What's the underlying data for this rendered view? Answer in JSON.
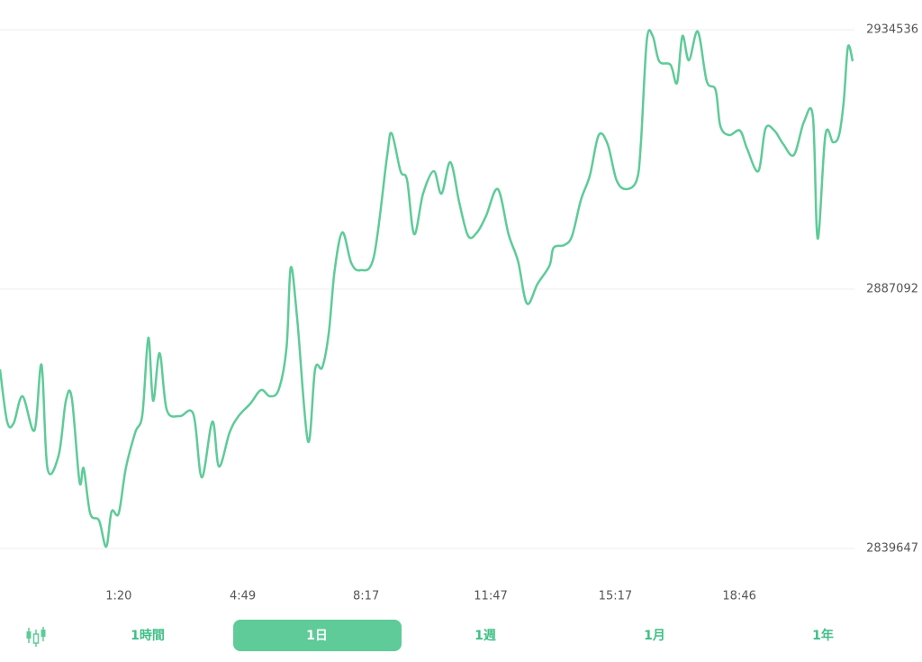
{
  "chart_data": {
    "type": "line",
    "color": "#5ecb98",
    "x": [
      0,
      12,
      23,
      38,
      58,
      70,
      80,
      99,
      111,
      121,
      134,
      141,
      152,
      167,
      179,
      188,
      200,
      212,
      228,
      240,
      250,
      258,
      269,
      281,
      303,
      326,
      340,
      358,
      369,
      387,
      402,
      422,
      440,
      455,
      470,
      483,
      490,
      501,
      519,
      531,
      543,
      554,
      564,
      577,
      592,
      607,
      630,
      652,
      660,
      675,
      686,
      698,
      713,
      731,
      744,
      759,
      774,
      789,
      804,
      819,
      839,
      857,
      873,
      888,
      906,
      926,
      933,
      951,
      964,
      979,
      994,
      1009,
      1024,
      1039,
      1055,
      1073,
      1080,
      1090,
      1100,
      1111,
      1130,
      1141,
      1150,
      1161,
      1176,
      1191,
      1206,
      1214,
      1229,
      1247,
      1259,
      1278,
      1290,
      1305,
      1320,
      1338,
      1355,
      1370,
      1378,
      1391,
      1404,
      1414,
      1422,
      1429,
      1437
    ],
    "values": [
      2872430,
      2862870,
      2862550,
      2867490,
      2861230,
      2873250,
      2854310,
      2856780,
      2866660,
      2867160,
      2851840,
      2854310,
      2846070,
      2844750,
      2839980,
      2846400,
      2846070,
      2854310,
      2860900,
      2864190,
      2878200,
      2866660,
      2875390,
      2865020,
      2863860,
      2864190,
      2852660,
      2862870,
      2854640,
      2860900,
      2863860,
      2866170,
      2868640,
      2867490,
      2868810,
      2876550,
      2891050,
      2881490,
      2859250,
      2872430,
      2872760,
      2879020,
      2890550,
      2897470,
      2891870,
      2890550,
      2893020,
      2911140,
      2915590,
      2908670,
      2907020,
      2897140,
      2904550,
      2908670,
      2904550,
      2910320,
      2902910,
      2896810,
      2897470,
      2900440,
      2905380,
      2897140,
      2892200,
      2884460,
      2888080,
      2891370,
      2894670,
      2895160,
      2896810,
      2903400,
      2907850,
      2915260,
      2913610,
      2907020,
      2905380,
      2907020,
      2913610,
      2932560,
      2933380,
      2928770,
      2928110,
      2924820,
      2933380,
      2928940,
      2934210,
      2925150,
      2923500,
      2916910,
      2915260,
      2916090,
      2912790,
      2908670,
      2916420,
      2916090,
      2913610,
      2911640,
      2917730,
      2918560,
      2896320,
      2915260,
      2913940,
      2915260,
      2921520,
      2931410,
      2928770
    ],
    "xlim": [
      0,
      1440
    ],
    "xticks": [
      {
        "value": 200,
        "label": "1:20"
      },
      {
        "value": 409,
        "label": "4:49"
      },
      {
        "value": 617,
        "label": "8:17"
      },
      {
        "value": 827,
        "label": "11:47"
      },
      {
        "value": 1037,
        "label": "15:17"
      },
      {
        "value": 1246,
        "label": "18:46"
      }
    ],
    "ylim": [
      2839647,
      2934536
    ],
    "yticks": [
      2839647,
      2887092,
      2934536
    ],
    "grid": true
  },
  "tabs": [
    "1時間",
    "1日",
    "1週",
    "1月",
    "1年"
  ],
  "selected_tab": 1
}
